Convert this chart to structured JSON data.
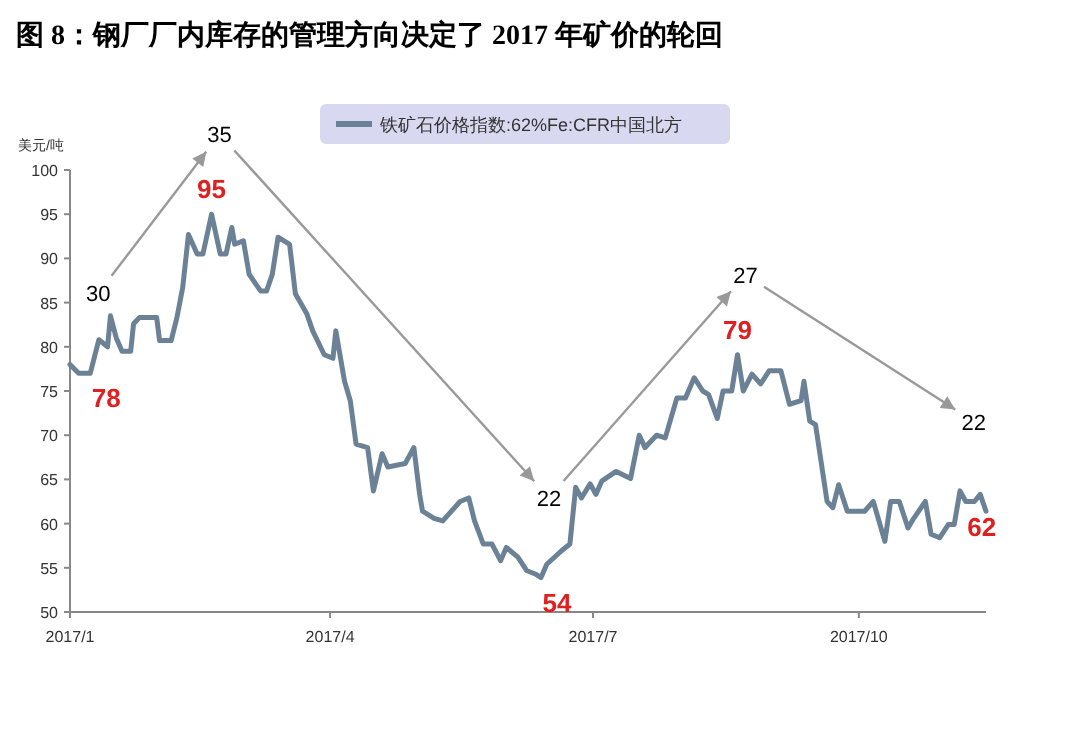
{
  "chart_data": {
    "type": "line",
    "title": "图 8：钢厂厂内库存的管理方向决定了 2017 年矿价的轮回",
    "ylabel": "美元/吨",
    "x": [
      "2017-01-01",
      "2017-01-04",
      "2017-01-08",
      "2017-01-11",
      "2017-01-14",
      "2017-01-15",
      "2017-01-17",
      "2017-01-19",
      "2017-01-22",
      "2017-01-23",
      "2017-01-25",
      "2017-01-31",
      "2017-02-01",
      "2017-02-05",
      "2017-02-07",
      "2017-02-09",
      "2017-02-11",
      "2017-02-14",
      "2017-02-16",
      "2017-02-19",
      "2017-02-22",
      "2017-02-24",
      "2017-02-26",
      "2017-02-27",
      "2017-03-02",
      "2017-03-04",
      "2017-03-08",
      "2017-03-10",
      "2017-03-12",
      "2017-03-14",
      "2017-03-18",
      "2017-03-20",
      "2017-03-24",
      "2017-03-26",
      "2017-03-30",
      "2017-04-02",
      "2017-04-03",
      "2017-04-06",
      "2017-04-08",
      "2017-04-10",
      "2017-04-14",
      "2017-04-16",
      "2017-04-19",
      "2017-04-21",
      "2017-04-27",
      "2017-04-30",
      "2017-05-02",
      "2017-05-03",
      "2017-05-07",
      "2017-05-10",
      "2017-05-16",
      "2017-05-19",
      "2017-05-21",
      "2017-05-24",
      "2017-05-27",
      "2017-05-30",
      "2017-06-01",
      "2017-06-05",
      "2017-06-08",
      "2017-06-11",
      "2017-06-13",
      "2017-06-15",
      "2017-06-20",
      "2017-06-23",
      "2017-06-25",
      "2017-06-27",
      "2017-06-30",
      "2017-07-02",
      "2017-07-04",
      "2017-07-09",
      "2017-07-14",
      "2017-07-17",
      "2017-07-19",
      "2017-07-23",
      "2017-07-26",
      "2017-07-30",
      "2017-08-02",
      "2017-08-05",
      "2017-08-08",
      "2017-08-10",
      "2017-08-13",
      "2017-08-15",
      "2017-08-18",
      "2017-08-20",
      "2017-08-22",
      "2017-08-25",
      "2017-08-28",
      "2017-08-31",
      "2017-09-04",
      "2017-09-07",
      "2017-09-11",
      "2017-09-12",
      "2017-09-14",
      "2017-09-16",
      "2017-09-20",
      "2017-09-22",
      "2017-09-24",
      "2017-09-27",
      "2017-10-03",
      "2017-10-06",
      "2017-10-10",
      "2017-10-12",
      "2017-10-15",
      "2017-10-18",
      "2017-10-20",
      "2017-10-24",
      "2017-10-26",
      "2017-10-29",
      "2017-11-01",
      "2017-11-03",
      "2017-11-05",
      "2017-11-07",
      "2017-11-10",
      "2017-11-12",
      "2017-11-14"
    ],
    "series": [
      {
        "name": "铁矿石价格指数:62%Fe:CFR中国北方",
        "color": "#6b8296",
        "values": [
          78.0,
          77.0,
          77.0,
          80.8,
          80.0,
          83.5,
          81.0,
          79.5,
          79.5,
          82.6,
          83.3,
          83.3,
          80.7,
          80.7,
          83.3,
          86.7,
          92.7,
          90.5,
          90.5,
          95.0,
          90.5,
          90.5,
          93.5,
          91.6,
          92.0,
          88.2,
          86.3,
          86.3,
          88.2,
          92.4,
          91.6,
          86.0,
          83.7,
          81.8,
          79.1,
          78.7,
          81.8,
          76.1,
          73.9,
          69.0,
          68.6,
          63.7,
          67.9,
          66.4,
          66.8,
          68.6,
          63.3,
          61.4,
          60.6,
          60.3,
          62.5,
          62.9,
          60.3,
          57.7,
          57.7,
          55.8,
          57.3,
          56.2,
          54.7,
          54.3,
          53.9,
          55.4,
          56.9,
          57.7,
          64.1,
          62.9,
          64.5,
          63.3,
          64.8,
          65.9,
          65.1,
          70.0,
          68.6,
          70.0,
          69.7,
          74.2,
          74.2,
          76.5,
          75.0,
          74.6,
          71.9,
          75.0,
          75.0,
          79.1,
          75.0,
          76.9,
          75.8,
          77.3,
          77.3,
          73.5,
          73.9,
          76.1,
          71.6,
          71.2,
          62.5,
          61.8,
          64.4,
          61.4,
          61.4,
          62.5,
          58.0,
          62.5,
          62.5,
          59.5,
          60.6,
          62.5,
          58.8,
          58.4,
          59.9,
          59.9,
          63.7,
          62.5,
          62.5,
          63.3,
          61.4
        ]
      }
    ],
    "xlim": [
      "2017-01-01",
      "2017-11-14"
    ],
    "xticks": [
      {
        "value": "2017-01-01",
        "label": "2017/1"
      },
      {
        "value": "2017-04-01",
        "label": "2017/4"
      },
      {
        "value": "2017-07-01",
        "label": "2017/7"
      },
      {
        "value": "2017-10-01",
        "label": "2017/10"
      }
    ],
    "ylim": [
      50,
      100
    ],
    "yticks": [
      50,
      55,
      60,
      65,
      70,
      75,
      80,
      85,
      90,
      95,
      100
    ],
    "grid": false,
    "legend": "top",
    "marker": "none",
    "line_style": "solid",
    "annotations": [
      "30",
      {
        "text": "78",
        "x": "2017-01-08",
        "y": 77.0
      },
      "35",
      {
        "text": "95",
        "x": "2017-02-19",
        "y": 95.0
      },
      "22",
      {
        "text": "54",
        "x": "2017-06-13",
        "y": 53.9
      },
      "27",
      {
        "text": "79",
        "x": "2017-08-20",
        "y": 79.1
      },
      "22",
      {
        "text": "62",
        "x": "2017-11-07",
        "y": 62.5
      }
    ]
  }
}
